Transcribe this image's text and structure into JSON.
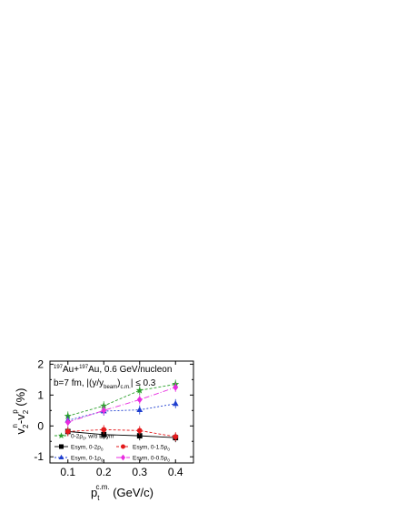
{
  "chart_data": {
    "type": "line",
    "x": [
      0.1,
      0.2,
      0.3,
      0.4
    ],
    "xlim": [
      0.05,
      0.45
    ],
    "ylim": [
      -1.2,
      2.1
    ],
    "xticks": [
      0.1,
      0.2,
      0.3,
      0.4
    ],
    "xtick_labels": [
      "0.1",
      "0.2",
      "0.3",
      "0.4"
    ],
    "yticks": [
      -1,
      0,
      1,
      2
    ],
    "ytick_labels": [
      "-1",
      "0",
      "1",
      "2"
    ],
    "xlabel": {
      "main": "p",
      "sub": "t",
      "sup": "c.m.",
      "tail": " (GeV/c)"
    },
    "ylabel": {
      "a": "v",
      "a_sup": "n",
      "a_sub": "2",
      "dash": "-",
      "b": "v",
      "b_sup": "p",
      "b_sub": "2",
      "tail": " (%)"
    },
    "annotations": {
      "line1": {
        "sup1": "197",
        "t1": "Au+",
        "sup2": "197",
        "t2": "Au, 0.6 GeV/nucleon"
      },
      "line2": {
        "t1": "b=7 fm, |(y/y",
        "sub1": "beam",
        "t2": ")",
        "sub2": "c.m.",
        "t3": "| ≤ 0.3"
      }
    },
    "grid": false,
    "legend_position": "bottom-left",
    "series": [
      {
        "name": "0-2ρ0, w/o Esym",
        "label_main": "0-2ρ",
        "label_sub": "0",
        "label_tail": ", w/o Esym",
        "values": [
          0.32,
          0.65,
          1.15,
          1.35
        ],
        "color": "#2ca02c",
        "marker": "star",
        "dash": "3,2",
        "filled": true
      },
      {
        "name": "Esym, 0-2ρ0",
        "label_main": "Esym, 0-2ρ",
        "label_sub": "0",
        "label_tail": "",
        "values": [
          -0.18,
          -0.28,
          -0.32,
          -0.38
        ],
        "color": "#000000",
        "marker": "square",
        "dash": "",
        "filled": true
      },
      {
        "name": "Esym, 0-1.5ρ0",
        "label_main": "Esym, 0-1.5ρ",
        "label_sub": "0",
        "label_tail": "",
        "values": [
          -0.18,
          -0.12,
          -0.15,
          -0.35
        ],
        "color": "#e31a1c",
        "marker": "circle",
        "dash": "3,2",
        "filled": true
      },
      {
        "name": "Esym, 0-1ρ0",
        "label_main": "Esym, 0-1ρ",
        "label_sub": "0",
        "label_tail": "",
        "values": [
          0.18,
          0.48,
          0.52,
          0.72
        ],
        "color": "#1f3fcf",
        "marker": "triangle",
        "dash": "2,2",
        "filled": true
      },
      {
        "name": "Esym, 0-0.5ρ0",
        "label_main": "Esym, 0-0.5ρ",
        "label_sub": "0",
        "label_tail": "",
        "values": [
          0.12,
          0.5,
          0.85,
          1.25
        ],
        "color": "#e82ce0",
        "marker": "diamond",
        "dash": "6,2,1,2",
        "filled": true
      }
    ]
  }
}
